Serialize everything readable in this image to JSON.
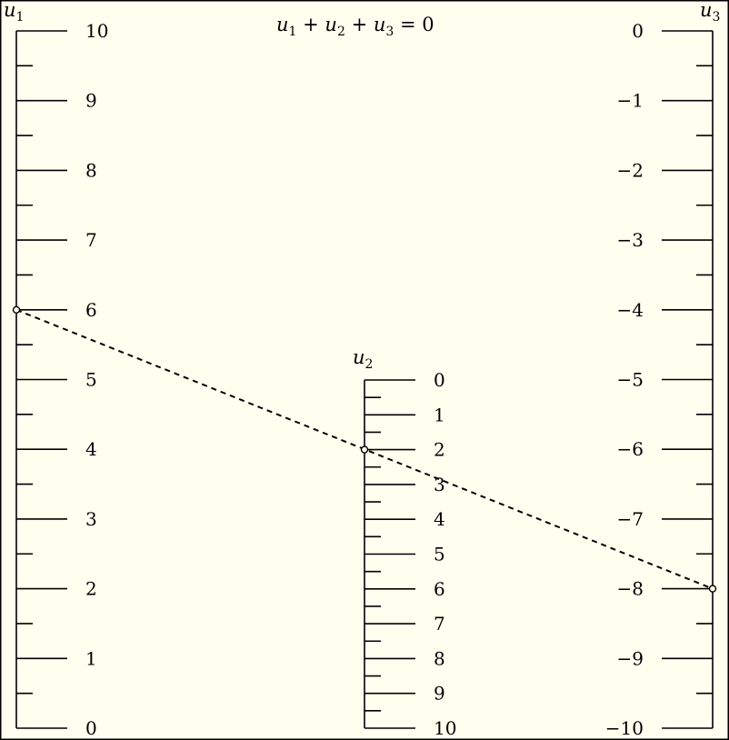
{
  "title": {
    "terms": [
      {
        "sym": "u",
        "sub": "1"
      },
      {
        "op": "+"
      },
      {
        "sym": "u",
        "sub": "2"
      },
      {
        "op": "+"
      },
      {
        "sym": "u",
        "sub": "3"
      },
      {
        "op": "="
      },
      {
        "num": "0"
      }
    ]
  },
  "scales": [
    {
      "id": "u1",
      "name": "u",
      "sub": "1",
      "min": 0,
      "max": 10,
      "major_step": 1,
      "minor_step": 0.5,
      "labels": [
        "10",
        "9",
        "8",
        "7",
        "6",
        "5",
        "4",
        "3",
        "2",
        "1",
        "0"
      ]
    },
    {
      "id": "u2",
      "name": "u",
      "sub": "2",
      "min": 0,
      "max": 10,
      "major_step": 1,
      "minor_step": 0.5,
      "labels": [
        "0",
        "1",
        "2",
        "3",
        "4",
        "5",
        "6",
        "7",
        "8",
        "9",
        "10"
      ]
    },
    {
      "id": "u3",
      "name": "u",
      "sub": "3",
      "min": -10,
      "max": 0,
      "major_step": 1,
      "minor_step": 0.5,
      "labels": [
        "0",
        "−1",
        "−2",
        "−3",
        "−4",
        "−5",
        "−6",
        "−7",
        "−8",
        "−9",
        "−10"
      ]
    }
  ],
  "example": {
    "u1": 6,
    "u2": 2,
    "u3": -8
  },
  "colors": {
    "background": "#fffff0",
    "ink": "#000000"
  }
}
